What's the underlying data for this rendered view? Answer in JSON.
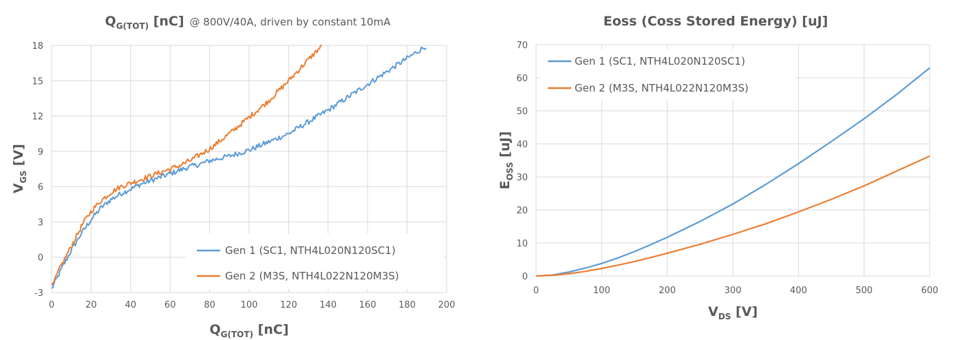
{
  "chart_data": [
    {
      "type": "line",
      "title": "Q",
      "title_sub": "G(TOT)",
      "title_unit": " [nC]",
      "subtitle": "@ 800V/40A, driven by constant 10mA",
      "xlabel": "Q",
      "xlabel_sub": "G(TOT)",
      "xlabel_unit": " [nC]",
      "ylabel": "V",
      "ylabel_sub": "GS",
      "ylabel_unit": " [V]",
      "xlim": [
        0,
        200
      ],
      "ylim": [
        -3,
        18
      ],
      "xticks": [
        0,
        20,
        40,
        60,
        80,
        100,
        120,
        140,
        160,
        180,
        200
      ],
      "yticks": [
        -3,
        0,
        3,
        6,
        9,
        12,
        15,
        18
      ],
      "grid": true,
      "legend_position": "bottom-right",
      "series": [
        {
          "name": "Gen 1 (SC1, NTH4L020N120SC1)",
          "color": "#5b9bd5",
          "x": [
            0,
            5,
            10,
            15,
            20,
            25,
            30,
            35,
            40,
            45,
            50,
            55,
            60,
            65,
            70,
            75,
            80,
            90,
            100,
            110,
            120,
            130,
            140,
            150,
            160,
            170,
            180,
            190
          ],
          "y": [
            -2.7,
            -1.0,
            0.6,
            2.0,
            3.2,
            4.2,
            4.9,
            5.4,
            5.8,
            6.2,
            6.5,
            6.8,
            7.1,
            7.4,
            7.7,
            7.9,
            8.2,
            8.6,
            9.1,
            9.8,
            10.5,
            11.5,
            12.5,
            13.6,
            14.7,
            15.8,
            16.9,
            18.0
          ]
        },
        {
          "name": "Gen 2 (M3S, NTH4L022N120M3S)",
          "color": "#ed7d31",
          "x": [
            0,
            4,
            8,
            12,
            16,
            20,
            25,
            30,
            35,
            40,
            45,
            50,
            55,
            60,
            65,
            70,
            75,
            80,
            90,
            100,
            110,
            120,
            130,
            137
          ],
          "y": [
            -2.6,
            -1.0,
            0.3,
            1.6,
            2.9,
            3.9,
            4.8,
            5.5,
            6.0,
            6.3,
            6.6,
            6.9,
            7.2,
            7.5,
            7.8,
            8.2,
            8.7,
            9.2,
            10.5,
            11.9,
            13.3,
            15.0,
            16.8,
            18.0
          ]
        }
      ]
    },
    {
      "type": "line",
      "title": "Eoss (Coss Stored Energy) [uJ]",
      "xlabel": "V",
      "xlabel_sub": "DS",
      "xlabel_unit": " [V]",
      "ylabel": "E",
      "ylabel_sub": "OSS",
      "ylabel_unit": " [uJ]",
      "xlim": [
        0,
        600
      ],
      "ylim": [
        0,
        70
      ],
      "xticks": [
        0,
        100,
        200,
        300,
        400,
        500,
        600
      ],
      "yticks": [
        0,
        10,
        20,
        30,
        40,
        50,
        60,
        70
      ],
      "grid": true,
      "legend_position": "top-left",
      "series": [
        {
          "name": "Gen 1 (SC1, NTH4L020N120SC1)",
          "color": "#5b9bd5",
          "x": [
            0,
            25,
            50,
            75,
            100,
            125,
            150,
            175,
            200,
            250,
            300,
            350,
            400,
            450,
            500,
            550,
            600
          ],
          "y": [
            0,
            0.3,
            1.2,
            2.4,
            3.8,
            5.5,
            7.4,
            9.5,
            11.7,
            16.5,
            21.8,
            27.7,
            34.0,
            40.7,
            47.6,
            55.0,
            63.0
          ]
        },
        {
          "name": "Gen 2 (M3S, NTH4L022N120M3S)",
          "color": "#ed7d31",
          "x": [
            0,
            25,
            50,
            75,
            100,
            125,
            150,
            175,
            200,
            250,
            300,
            350,
            400,
            450,
            500,
            550,
            600
          ],
          "y": [
            0,
            0.2,
            0.7,
            1.4,
            2.3,
            3.3,
            4.4,
            5.6,
            6.9,
            9.6,
            12.6,
            15.8,
            19.4,
            23.2,
            27.3,
            31.8,
            36.3
          ]
        }
      ]
    }
  ]
}
